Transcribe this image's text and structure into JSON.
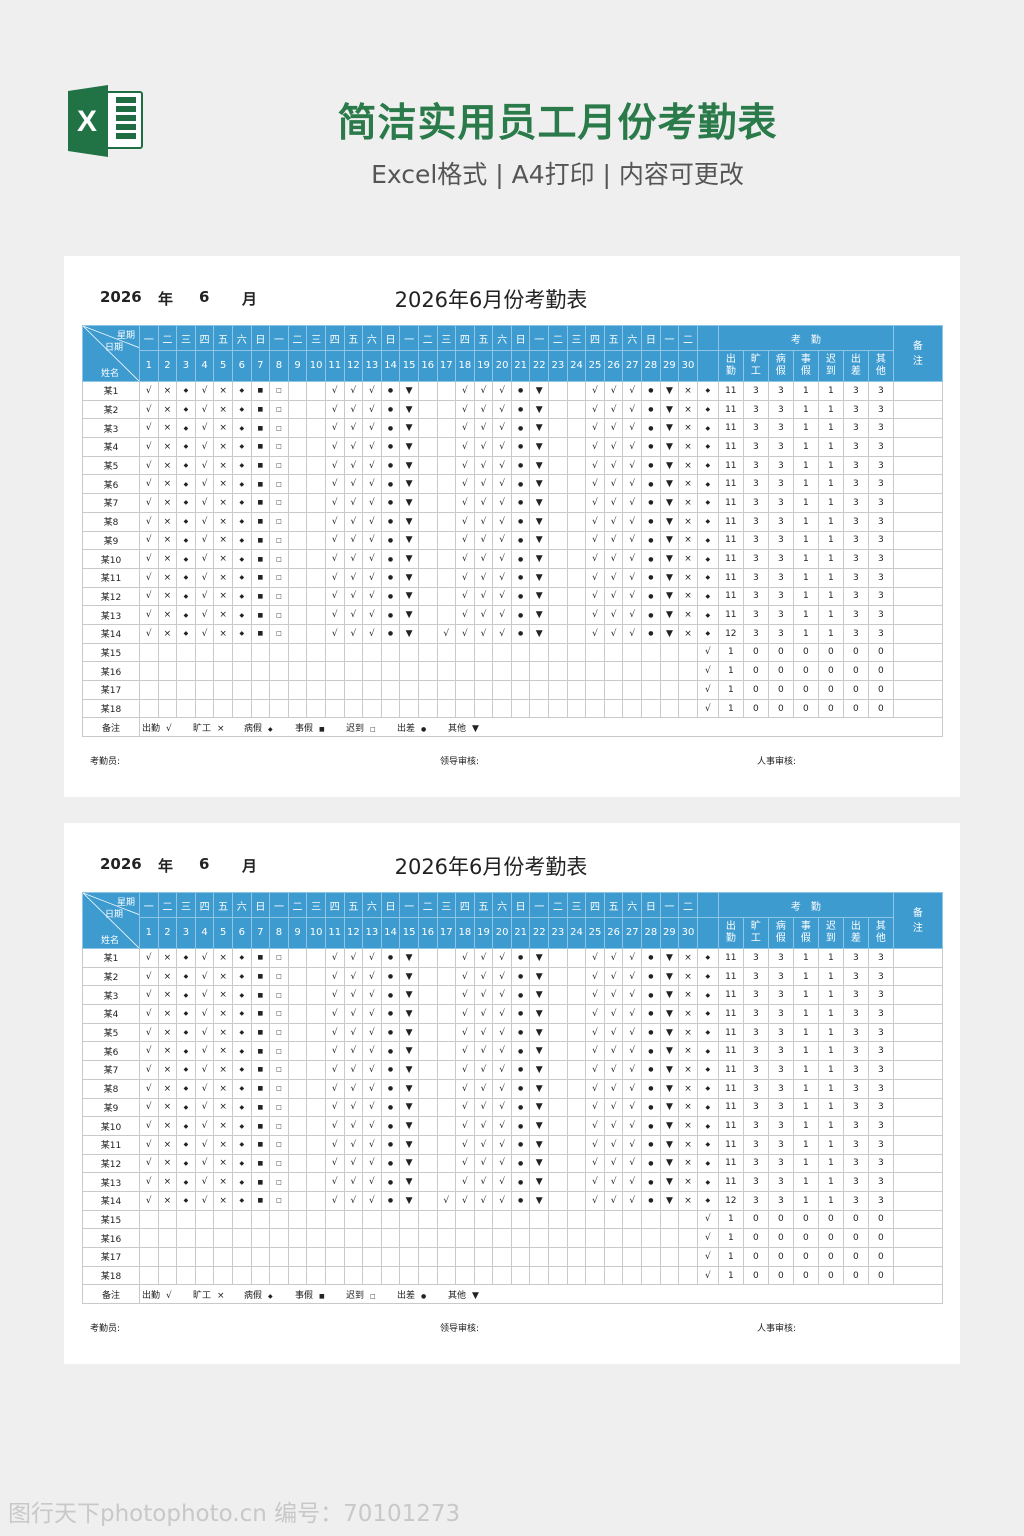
{
  "header": {
    "logo": "excel-logo",
    "title": "简洁实用员工月份考勤表",
    "subtitle": "Excel格式 | A4打印 | 内容可更改"
  },
  "colors": {
    "header_blue": "#3d9bd0",
    "title_green": "#2a7a4a"
  },
  "sheet": {
    "year": "2026",
    "year_label": "年",
    "month": "6",
    "month_label": "月",
    "title": "2026年6月份考勤表",
    "corner": {
      "weekday": "星期",
      "date": "日期",
      "name": "姓名"
    },
    "weekdays": [
      "一",
      "二",
      "三",
      "四",
      "五",
      "六",
      "日",
      "一",
      "二",
      "三",
      "四",
      "五",
      "六",
      "日",
      "一",
      "二",
      "三",
      "四",
      "五",
      "六",
      "日",
      "一",
      "二",
      "三",
      "四",
      "五",
      "六",
      "日",
      "一",
      "二",
      ""
    ],
    "days": [
      "1",
      "2",
      "3",
      "4",
      "5",
      "6",
      "7",
      "8",
      "9",
      "10",
      "11",
      "12",
      "13",
      "14",
      "15",
      "16",
      "17",
      "18",
      "19",
      "20",
      "21",
      "22",
      "23",
      "24",
      "25",
      "26",
      "27",
      "28",
      "29",
      "30",
      ""
    ],
    "stats_group": "考　勤",
    "stats_headers": [
      "出\n勤",
      "旷\n工",
      "病\n假",
      "事\n假",
      "迟\n到",
      "出\n差",
      "其\n他"
    ],
    "remark_header": "备\n注",
    "rows": [
      {
        "name": "某1",
        "marks": [
          "√",
          "×",
          "◆",
          "√",
          "×",
          "◆",
          "■",
          "□",
          "",
          "",
          "√",
          "√",
          "√",
          "●",
          "▼",
          "",
          "",
          "√",
          "√",
          "√",
          "●",
          "▼",
          "",
          "",
          "√",
          "√",
          "√",
          "●",
          "▼",
          "×",
          "◆"
        ],
        "stats": [
          "11",
          "3",
          "3",
          "1",
          "1",
          "3",
          "3"
        ]
      },
      {
        "name": "某2",
        "marks": [
          "√",
          "×",
          "◆",
          "√",
          "×",
          "◆",
          "■",
          "□",
          "",
          "",
          "√",
          "√",
          "√",
          "●",
          "▼",
          "",
          "",
          "√",
          "√",
          "√",
          "●",
          "▼",
          "",
          "",
          "√",
          "√",
          "√",
          "●",
          "▼",
          "×",
          "◆"
        ],
        "stats": [
          "11",
          "3",
          "3",
          "1",
          "1",
          "3",
          "3"
        ]
      },
      {
        "name": "某3",
        "marks": [
          "√",
          "×",
          "◆",
          "√",
          "×",
          "◆",
          "■",
          "□",
          "",
          "",
          "√",
          "√",
          "√",
          "●",
          "▼",
          "",
          "",
          "√",
          "√",
          "√",
          "●",
          "▼",
          "",
          "",
          "√",
          "√",
          "√",
          "●",
          "▼",
          "×",
          "◆"
        ],
        "stats": [
          "11",
          "3",
          "3",
          "1",
          "1",
          "3",
          "3"
        ]
      },
      {
        "name": "某4",
        "marks": [
          "√",
          "×",
          "◆",
          "√",
          "×",
          "◆",
          "■",
          "□",
          "",
          "",
          "√",
          "√",
          "√",
          "●",
          "▼",
          "",
          "",
          "√",
          "√",
          "√",
          "●",
          "▼",
          "",
          "",
          "√",
          "√",
          "√",
          "●",
          "▼",
          "×",
          "◆"
        ],
        "stats": [
          "11",
          "3",
          "3",
          "1",
          "1",
          "3",
          "3"
        ]
      },
      {
        "name": "某5",
        "marks": [
          "√",
          "×",
          "◆",
          "√",
          "×",
          "◆",
          "■",
          "□",
          "",
          "",
          "√",
          "√",
          "√",
          "●",
          "▼",
          "",
          "",
          "√",
          "√",
          "√",
          "●",
          "▼",
          "",
          "",
          "√",
          "√",
          "√",
          "●",
          "▼",
          "×",
          "◆"
        ],
        "stats": [
          "11",
          "3",
          "3",
          "1",
          "1",
          "3",
          "3"
        ]
      },
      {
        "name": "某6",
        "marks": [
          "√",
          "×",
          "◆",
          "√",
          "×",
          "◆",
          "■",
          "□",
          "",
          "",
          "√",
          "√",
          "√",
          "●",
          "▼",
          "",
          "",
          "√",
          "√",
          "√",
          "●",
          "▼",
          "",
          "",
          "√",
          "√",
          "√",
          "●",
          "▼",
          "×",
          "◆"
        ],
        "stats": [
          "11",
          "3",
          "3",
          "1",
          "1",
          "3",
          "3"
        ]
      },
      {
        "name": "某7",
        "marks": [
          "√",
          "×",
          "◆",
          "√",
          "×",
          "◆",
          "■",
          "□",
          "",
          "",
          "√",
          "√",
          "√",
          "●",
          "▼",
          "",
          "",
          "√",
          "√",
          "√",
          "●",
          "▼",
          "",
          "",
          "√",
          "√",
          "√",
          "●",
          "▼",
          "×",
          "◆"
        ],
        "stats": [
          "11",
          "3",
          "3",
          "1",
          "1",
          "3",
          "3"
        ]
      },
      {
        "name": "某8",
        "marks": [
          "√",
          "×",
          "◆",
          "√",
          "×",
          "◆",
          "■",
          "□",
          "",
          "",
          "√",
          "√",
          "√",
          "●",
          "▼",
          "",
          "",
          "√",
          "√",
          "√",
          "●",
          "▼",
          "",
          "",
          "√",
          "√",
          "√",
          "●",
          "▼",
          "×",
          "◆"
        ],
        "stats": [
          "11",
          "3",
          "3",
          "1",
          "1",
          "3",
          "3"
        ]
      },
      {
        "name": "某9",
        "marks": [
          "√",
          "×",
          "◆",
          "√",
          "×",
          "◆",
          "■",
          "□",
          "",
          "",
          "√",
          "√",
          "√",
          "●",
          "▼",
          "",
          "",
          "√",
          "√",
          "√",
          "●",
          "▼",
          "",
          "",
          "√",
          "√",
          "√",
          "●",
          "▼",
          "×",
          "◆"
        ],
        "stats": [
          "11",
          "3",
          "3",
          "1",
          "1",
          "3",
          "3"
        ]
      },
      {
        "name": "某10",
        "marks": [
          "√",
          "×",
          "◆",
          "√",
          "×",
          "◆",
          "■",
          "□",
          "",
          "",
          "√",
          "√",
          "√",
          "●",
          "▼",
          "",
          "",
          "√",
          "√",
          "√",
          "●",
          "▼",
          "",
          "",
          "√",
          "√",
          "√",
          "●",
          "▼",
          "×",
          "◆"
        ],
        "stats": [
          "11",
          "3",
          "3",
          "1",
          "1",
          "3",
          "3"
        ]
      },
      {
        "name": "某11",
        "marks": [
          "√",
          "×",
          "◆",
          "√",
          "×",
          "◆",
          "■",
          "□",
          "",
          "",
          "√",
          "√",
          "√",
          "●",
          "▼",
          "",
          "",
          "√",
          "√",
          "√",
          "●",
          "▼",
          "",
          "",
          "√",
          "√",
          "√",
          "●",
          "▼",
          "×",
          "◆"
        ],
        "stats": [
          "11",
          "3",
          "3",
          "1",
          "1",
          "3",
          "3"
        ]
      },
      {
        "name": "某12",
        "marks": [
          "√",
          "×",
          "◆",
          "√",
          "×",
          "◆",
          "■",
          "□",
          "",
          "",
          "√",
          "√",
          "√",
          "●",
          "▼",
          "",
          "",
          "√",
          "√",
          "√",
          "●",
          "▼",
          "",
          "",
          "√",
          "√",
          "√",
          "●",
          "▼",
          "×",
          "◆"
        ],
        "stats": [
          "11",
          "3",
          "3",
          "1",
          "1",
          "3",
          "3"
        ]
      },
      {
        "name": "某13",
        "marks": [
          "√",
          "×",
          "◆",
          "√",
          "×",
          "◆",
          "■",
          "□",
          "",
          "",
          "√",
          "√",
          "√",
          "●",
          "▼",
          "",
          "",
          "√",
          "√",
          "√",
          "●",
          "▼",
          "",
          "",
          "√",
          "√",
          "√",
          "●",
          "▼",
          "×",
          "◆"
        ],
        "stats": [
          "11",
          "3",
          "3",
          "1",
          "1",
          "3",
          "3"
        ]
      },
      {
        "name": "某14",
        "marks": [
          "√",
          "×",
          "◆",
          "√",
          "×",
          "◆",
          "■",
          "□",
          "",
          "",
          "√",
          "√",
          "√",
          "●",
          "▼",
          "",
          "√",
          "√",
          "√",
          "√",
          "●",
          "▼",
          "",
          "",
          "√",
          "√",
          "√",
          "●",
          "▼",
          "×",
          "◆"
        ],
        "stats": [
          "12",
          "3",
          "3",
          "1",
          "1",
          "3",
          "3"
        ]
      },
      {
        "name": "某15",
        "marks": [
          "",
          "",
          "",
          "",
          "",
          "",
          "",
          "",
          "",
          "",
          "",
          "",
          "",
          "",
          "",
          "",
          "",
          "",
          "",
          "",
          "",
          "",
          "",
          "",
          "",
          "",
          "",
          "",
          "",
          "",
          "√"
        ],
        "stats": [
          "1",
          "0",
          "0",
          "0",
          "0",
          "0",
          "0"
        ]
      },
      {
        "name": "某16",
        "marks": [
          "",
          "",
          "",
          "",
          "",
          "",
          "",
          "",
          "",
          "",
          "",
          "",
          "",
          "",
          "",
          "",
          "",
          "",
          "",
          "",
          "",
          "",
          "",
          "",
          "",
          "",
          "",
          "",
          "",
          "",
          "√"
        ],
        "stats": [
          "1",
          "0",
          "0",
          "0",
          "0",
          "0",
          "0"
        ]
      },
      {
        "name": "某17",
        "marks": [
          "",
          "",
          "",
          "",
          "",
          "",
          "",
          "",
          "",
          "",
          "",
          "",
          "",
          "",
          "",
          "",
          "",
          "",
          "",
          "",
          "",
          "",
          "",
          "",
          "",
          "",
          "",
          "",
          "",
          "",
          "√"
        ],
        "stats": [
          "1",
          "0",
          "0",
          "0",
          "0",
          "0",
          "0"
        ]
      },
      {
        "name": "某18",
        "marks": [
          "",
          "",
          "",
          "",
          "",
          "",
          "",
          "",
          "",
          "",
          "",
          "",
          "",
          "",
          "",
          "",
          "",
          "",
          "",
          "",
          "",
          "",
          "",
          "",
          "",
          "",
          "",
          "",
          "",
          "",
          "√"
        ],
        "stats": [
          "1",
          "0",
          "0",
          "0",
          "0",
          "0",
          "0"
        ]
      }
    ],
    "legend_label": "备注",
    "legend": [
      {
        "label": "出勤",
        "symbol": "√"
      },
      {
        "label": "旷工",
        "symbol": "×"
      },
      {
        "label": "病假",
        "symbol": "◆"
      },
      {
        "label": "事假",
        "symbol": "■"
      },
      {
        "label": "迟到",
        "symbol": "□"
      },
      {
        "label": "出差",
        "symbol": "●"
      },
      {
        "label": "其他",
        "symbol": "▼"
      }
    ],
    "signatures": [
      "考勤员:",
      "领导审核:",
      "人事审核:"
    ]
  },
  "watermark": "图行天下photophoto.cn 编号：70101273"
}
